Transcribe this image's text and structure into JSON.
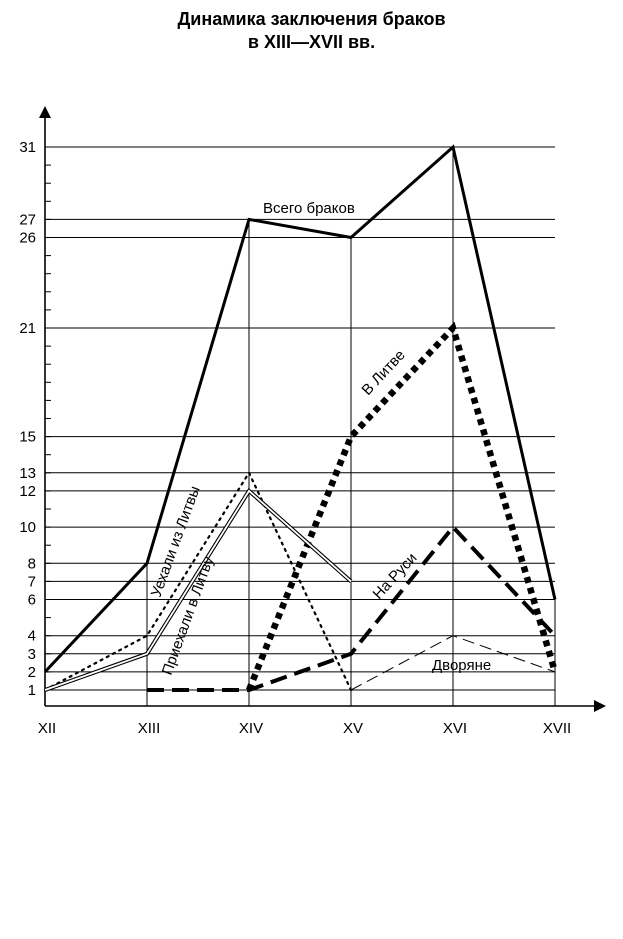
{
  "chart_data": {
    "type": "line",
    "title": "Динамика заключения браков",
    "subtitle": "в XIII—XVII вв.",
    "xlabel": "",
    "ylabel": "",
    "categories": [
      "XII",
      "XIII",
      "XIV",
      "XV",
      "XVI",
      "XVII"
    ],
    "y_ticks": [
      1,
      2,
      3,
      4,
      6,
      7,
      8,
      10,
      12,
      13,
      15,
      21,
      26,
      27,
      31
    ],
    "ylim": [
      0,
      33
    ],
    "grid": "horizontal and vertical at data points",
    "series": [
      {
        "name": "Всего браков",
        "style": "solid-thick",
        "values": [
          2,
          8,
          27,
          26,
          31,
          6
        ]
      },
      {
        "name": "В Литве",
        "style": "dotted-thick",
        "values": [
          null,
          null,
          1,
          15,
          21,
          2
        ]
      },
      {
        "name": "На Руси",
        "style": "dashed-thick",
        "values": [
          null,
          1,
          1,
          3,
          10,
          4
        ]
      },
      {
        "name": "Уехали из Литвы",
        "style": "dotted-thin",
        "values": [
          1,
          4,
          13,
          1,
          null,
          null
        ]
      },
      {
        "name": "Приехали в Литву",
        "style": "double",
        "values": [
          1,
          3,
          12,
          7,
          null,
          null
        ]
      },
      {
        "name": "Дворяне",
        "style": "dashed-thin",
        "values": [
          null,
          null,
          null,
          1,
          4,
          2
        ]
      }
    ]
  }
}
